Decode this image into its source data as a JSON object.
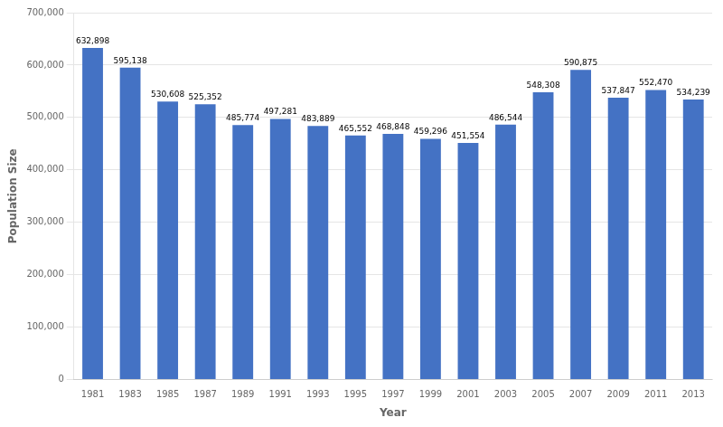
{
  "chart_data": {
    "type": "bar",
    "x_label": "Year",
    "y_label": "Population Size",
    "categories": [
      "1981",
      "1983",
      "1985",
      "1987",
      "1989",
      "1991",
      "1993",
      "1995",
      "1997",
      "1999",
      "2001",
      "2003",
      "2005",
      "2007",
      "2009",
      "2011",
      "2013"
    ],
    "values": [
      632898,
      595138,
      530608,
      525352,
      485774,
      497281,
      483889,
      465552,
      468848,
      459296,
      451554,
      486544,
      548308,
      590875,
      537847,
      552470,
      534239
    ],
    "value_labels": [
      "632,898",
      "595,138",
      "530,608",
      "525,352",
      "485,774",
      "497,281",
      "483,889",
      "465,552",
      "468,848",
      "459,296",
      "451,554",
      "486,544",
      "548,308",
      "590,875",
      "537,847",
      "552,470",
      "534,239"
    ],
    "color": "#4472C4",
    "ylim": [
      0,
      700000
    ],
    "yticks": [
      0,
      {
        "value": 100000,
        "label": "100,000"
      },
      {
        "value": 200000,
        "label": "200,000"
      },
      {
        "value": 300000,
        "label": "300,000"
      },
      {
        "value": 400000,
        "label": "400,000"
      },
      {
        "value": 500000,
        "label": "500,000"
      },
      {
        "value": 600000,
        "label": "600,000"
      },
      {
        "value": 700000,
        "label": "700,000"
      }
    ],
    "grid": true,
    "data_labels": true
  }
}
